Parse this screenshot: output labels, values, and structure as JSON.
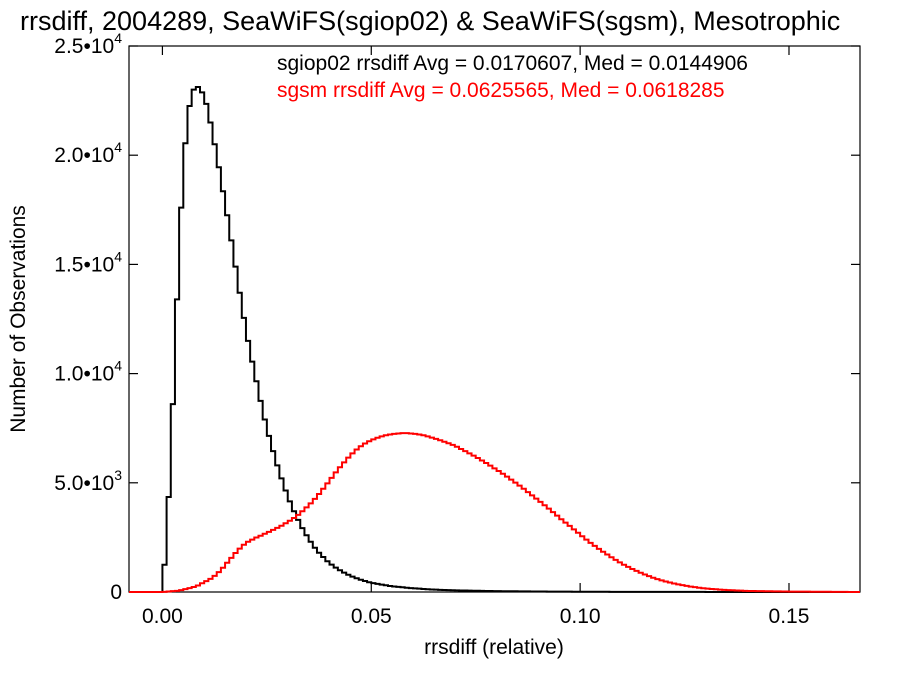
{
  "chart_data": {
    "type": "line",
    "title": "rrsdiff, 2004289, SeaWiFS(sgiop02) & SeaWiFS(sgsm), Mesotrophic",
    "xlabel": "rrsdiff (relative)",
    "ylabel": "Number of Observations",
    "xlim": [
      -0.008,
      0.167
    ],
    "ylim": [
      0,
      25000
    ],
    "x_ticks": [
      {
        "value": 0.0,
        "label": "0.00"
      },
      {
        "value": 0.05,
        "label": "0.05"
      },
      {
        "value": 0.1,
        "label": "0.10"
      },
      {
        "value": 0.15,
        "label": "0.15"
      }
    ],
    "y_ticks": [
      {
        "value": 0,
        "mantissa": "0",
        "exponent": ""
      },
      {
        "value": 5000,
        "mantissa": "5.0•10",
        "exponent": "3"
      },
      {
        "value": 10000,
        "mantissa": "1.0•10",
        "exponent": "4"
      },
      {
        "value": 15000,
        "mantissa": "1.5•10",
        "exponent": "4"
      },
      {
        "value": 20000,
        "mantissa": "2.0•10",
        "exponent": "4"
      },
      {
        "value": 25000,
        "mantissa": "2.5•10",
        "exponent": "4"
      }
    ],
    "grid": false,
    "legend_position": "top-right",
    "series": [
      {
        "name": "sgiop02",
        "color": "#000000",
        "label": "sgiop02 rrsdiff Avg = 0.0170607, Med = 0.0144906",
        "x": [
          0.0,
          0.001,
          0.002,
          0.003,
          0.004,
          0.005,
          0.006,
          0.007,
          0.008,
          0.009,
          0.01,
          0.011,
          0.012,
          0.013,
          0.014,
          0.015,
          0.016,
          0.017,
          0.018,
          0.019,
          0.02,
          0.021,
          0.022,
          0.023,
          0.024,
          0.025,
          0.026,
          0.027,
          0.028,
          0.029,
          0.03,
          0.031,
          0.032,
          0.033,
          0.034,
          0.035,
          0.036,
          0.037,
          0.038,
          0.039,
          0.04,
          0.042,
          0.044,
          0.046,
          0.048,
          0.05,
          0.055,
          0.06,
          0.065,
          0.07,
          0.08,
          0.09,
          0.1,
          0.11,
          0.12,
          0.14,
          0.167
        ],
        "y": [
          0,
          2500,
          6200,
          11000,
          15800,
          19400,
          21700,
          22800,
          23200,
          23050,
          22700,
          22000,
          21000,
          20000,
          18900,
          17800,
          16700,
          15500,
          14300,
          13100,
          12000,
          11000,
          10100,
          9200,
          8300,
          7500,
          6800,
          6100,
          5500,
          4900,
          4400,
          3900,
          3500,
          3100,
          2750,
          2450,
          2150,
          1900,
          1700,
          1500,
          1320,
          1050,
          830,
          660,
          530,
          420,
          260,
          170,
          110,
          75,
          40,
          22,
          12,
          7,
          4,
          2,
          0
        ]
      },
      {
        "name": "sgsm",
        "color": "#ff0000",
        "label": "sgsm rrsdiff Avg = 0.0625565, Med = 0.0618285",
        "x": [
          0.0,
          0.004,
          0.008,
          0.012,
          0.014,
          0.016,
          0.018,
          0.02,
          0.022,
          0.024,
          0.026,
          0.028,
          0.03,
          0.032,
          0.034,
          0.036,
          0.038,
          0.04,
          0.042,
          0.044,
          0.046,
          0.048,
          0.05,
          0.052,
          0.054,
          0.056,
          0.058,
          0.06,
          0.062,
          0.064,
          0.066,
          0.068,
          0.07,
          0.072,
          0.074,
          0.076,
          0.078,
          0.08,
          0.082,
          0.084,
          0.086,
          0.088,
          0.09,
          0.092,
          0.094,
          0.096,
          0.098,
          0.1,
          0.102,
          0.104,
          0.106,
          0.108,
          0.11,
          0.112,
          0.114,
          0.116,
          0.118,
          0.12,
          0.123,
          0.126,
          0.13,
          0.135,
          0.14,
          0.15,
          0.167
        ],
        "y": [
          0,
          60,
          250,
          650,
          1000,
          1450,
          1900,
          2250,
          2450,
          2620,
          2800,
          2980,
          3200,
          3450,
          3780,
          4150,
          4600,
          5100,
          5600,
          6050,
          6450,
          6750,
          6950,
          7100,
          7200,
          7250,
          7280,
          7250,
          7200,
          7100,
          6980,
          6850,
          6700,
          6500,
          6300,
          6080,
          5850,
          5600,
          5350,
          5080,
          4800,
          4500,
          4200,
          3900,
          3580,
          3250,
          2950,
          2630,
          2320,
          2040,
          1780,
          1530,
          1300,
          1100,
          920,
          760,
          620,
          500,
          370,
          260,
          160,
          90,
          50,
          20,
          0
        ]
      }
    ]
  }
}
